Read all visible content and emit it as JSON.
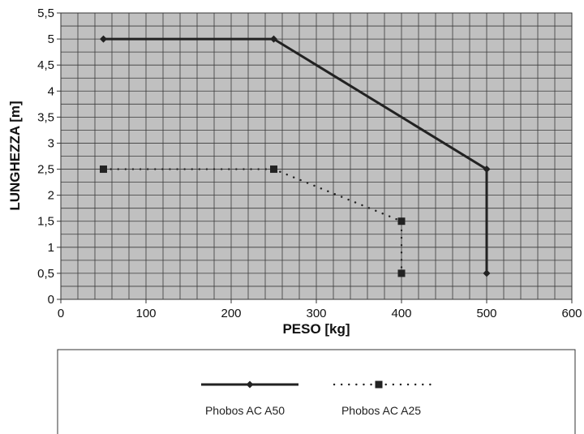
{
  "chart_data": {
    "type": "line",
    "title": "",
    "xlabel": "PESO [kg]",
    "ylabel": "LUNGHEZZA [m]",
    "xlim": [
      0,
      600
    ],
    "ylim": [
      0,
      5.5
    ],
    "x_ticks": [
      0,
      100,
      200,
      300,
      400,
      500,
      600
    ],
    "x_tick_labels": [
      "0",
      "100",
      "200",
      "300",
      "400",
      "500",
      "600"
    ],
    "y_ticks": [
      0,
      0.5,
      1,
      1.5,
      2,
      2.5,
      3,
      3.5,
      4,
      4.5,
      5,
      5.5
    ],
    "y_tick_labels": [
      "0",
      "0,5",
      "1",
      "1,5",
      "2",
      "2,5",
      "3",
      "3,5",
      "4",
      "4,5",
      "5",
      "5,5"
    ],
    "x_minor_step": 20,
    "y_minor_step": 0.25,
    "grid": true,
    "legend_position": "bottom",
    "plot_background": "#c0c0c0",
    "series": [
      {
        "name": "Phobos AC A50",
        "x": [
          50,
          250,
          500,
          500
        ],
        "y": [
          5,
          5,
          2.5,
          0.5
        ],
        "line_style": "solid",
        "marker": "diamond",
        "color": "#222222"
      },
      {
        "name": "Phobos AC A25",
        "x": [
          50,
          250,
          400,
          400
        ],
        "y": [
          2.5,
          2.5,
          1.5,
          0.5
        ],
        "line_style": "dotted",
        "marker": "square",
        "color": "#222222"
      }
    ]
  }
}
